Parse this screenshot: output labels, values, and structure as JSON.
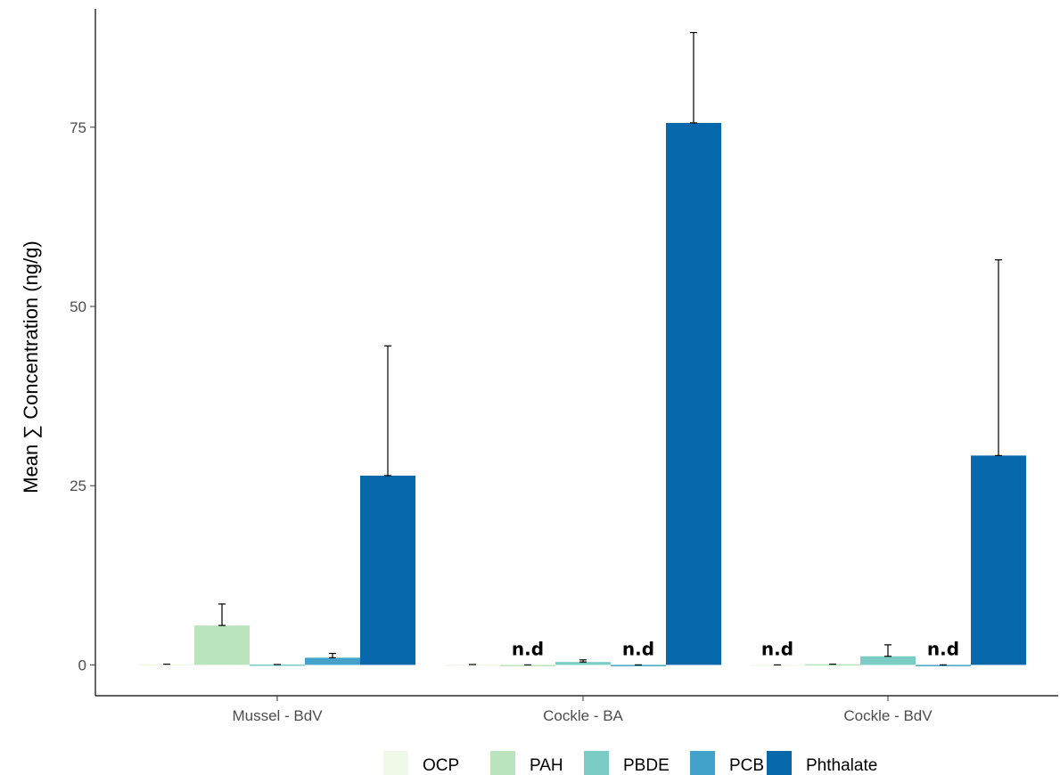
{
  "chart_data": {
    "type": "bar",
    "title": "",
    "xlabel": "",
    "ylabel": "Mean ∑ Concentration (ng/g)",
    "ylim": [
      -4.3,
      91.5
    ],
    "yticks": [
      "0",
      "25",
      "50",
      "75"
    ],
    "grid": false,
    "legend_position": "bottom",
    "categories": [
      "Mussel - BdV",
      "Cockle - BA",
      "Cockle - BdV"
    ],
    "series": [
      {
        "name": "OCP",
        "color": "#f0f9e8",
        "values": [
          0.1,
          0.05,
          0
        ],
        "error_upper": [
          0.1,
          0.05,
          0
        ],
        "nd": [
          false,
          false,
          true
        ]
      },
      {
        "name": "PAH",
        "color": "#bae4bc",
        "values": [
          5.5,
          0,
          0.1
        ],
        "error_upper": [
          8.5,
          0,
          0.1
        ],
        "nd": [
          false,
          true,
          false
        ]
      },
      {
        "name": "PBDE",
        "color": "#7bccc4",
        "values": [
          0.05,
          0.4,
          1.2
        ],
        "error_upper": [
          0.05,
          0.7,
          2.8
        ],
        "nd": [
          false,
          false,
          false
        ]
      },
      {
        "name": "PCB",
        "color": "#43a2ca",
        "values": [
          1.0,
          0,
          0
        ],
        "error_upper": [
          1.6,
          0,
          0
        ],
        "nd": [
          false,
          true,
          true
        ]
      },
      {
        "name": "Phthalate",
        "color": "#0868ac",
        "values": [
          26.4,
          75.6,
          29.2
        ],
        "error_upper": [
          44.5,
          88.2,
          56.5
        ],
        "nd": [
          false,
          false,
          false
        ]
      }
    ],
    "annotation": "n.d"
  }
}
